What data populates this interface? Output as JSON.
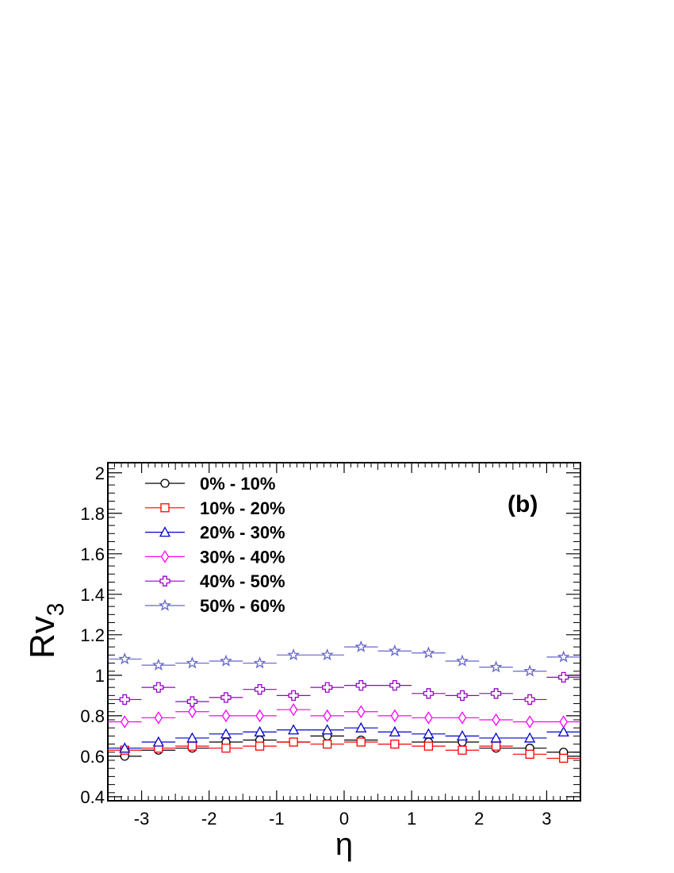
{
  "chart_data": {
    "type": "scatter",
    "panel_label": "(b)",
    "xlabel": "η",
    "ylabel_main": "Rv",
    "ylabel_sub": "3",
    "xlim": [
      -3.5,
      3.5
    ],
    "ylim": [
      0.38,
      2.05
    ],
    "x_ticks": [
      -3,
      -2,
      -1,
      0,
      1,
      2,
      3
    ],
    "x_tick_labels": [
      "-3",
      "-2",
      "-1",
      "0",
      "1",
      "2",
      "3"
    ],
    "y_ticks": [
      0.4,
      0.6,
      0.8,
      1.0,
      1.2,
      1.4,
      1.6,
      1.8,
      2.0
    ],
    "y_tick_labels": [
      "0.4",
      "0.6",
      "0.8",
      "1",
      "1.2",
      "1.4",
      "1.6",
      "1.8",
      "2"
    ],
    "legend_position": "top-left",
    "bin_half_width": 0.25,
    "x": [
      -3.25,
      -2.75,
      -2.25,
      -1.75,
      -1.25,
      -0.75,
      -0.25,
      0.25,
      0.75,
      1.25,
      1.75,
      2.25,
      2.75,
      3.25
    ],
    "series": [
      {
        "name": "0% - 10%",
        "color": "#000000",
        "marker": "circle",
        "values": [
          0.6,
          0.63,
          0.64,
          0.67,
          0.68,
          0.67,
          0.7,
          0.68,
          0.66,
          0.67,
          0.67,
          0.64,
          0.64,
          0.62
        ]
      },
      {
        "name": "10% - 20%",
        "color": "#ff0000",
        "marker": "square",
        "values": [
          0.63,
          0.64,
          0.65,
          0.64,
          0.65,
          0.67,
          0.66,
          0.67,
          0.66,
          0.65,
          0.63,
          0.65,
          0.61,
          0.59
        ]
      },
      {
        "name": "20% - 30%",
        "color": "#0000cc",
        "marker": "triangle",
        "values": [
          0.64,
          0.67,
          0.69,
          0.71,
          0.72,
          0.73,
          0.73,
          0.74,
          0.72,
          0.71,
          0.7,
          0.69,
          0.69,
          0.72
        ]
      },
      {
        "name": "30% - 40%",
        "color": "#ff00ff",
        "marker": "diamond",
        "values": [
          0.77,
          0.79,
          0.82,
          0.8,
          0.8,
          0.83,
          0.8,
          0.82,
          0.8,
          0.79,
          0.79,
          0.78,
          0.77,
          0.77
        ]
      },
      {
        "name": "40% - 50%",
        "color": "#9900cc",
        "marker": "cross",
        "values": [
          0.88,
          0.94,
          0.87,
          0.89,
          0.93,
          0.9,
          0.94,
          0.95,
          0.95,
          0.91,
          0.9,
          0.91,
          0.88,
          0.99
        ]
      },
      {
        "name": "50% - 60%",
        "color": "#6666cc",
        "marker": "star",
        "values": [
          1.08,
          1.05,
          1.06,
          1.07,
          1.06,
          1.1,
          1.1,
          1.14,
          1.12,
          1.11,
          1.07,
          1.04,
          1.02,
          1.09
        ]
      }
    ]
  }
}
